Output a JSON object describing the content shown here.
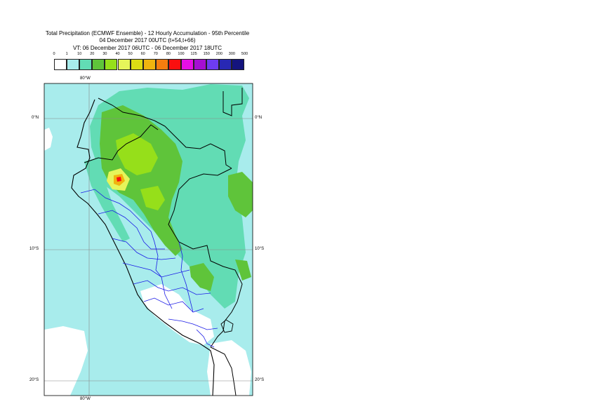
{
  "title": {
    "line1": "Total Precipitation (ECMWF Ensemble) - 12 Hourly Accumulation - 95th Percentile",
    "line2": "04 December 2017 00UTC (t+54,t+66)",
    "line3": "VT: 06 December 2017 06UTC - 06 December 2017 18UTC"
  },
  "legend": {
    "thresholds": [
      "0",
      "1",
      "10",
      "20",
      "30",
      "40",
      "50",
      "60",
      "70",
      "80",
      "100",
      "125",
      "150",
      "200",
      "300",
      "500"
    ],
    "colors": [
      "#ffffff",
      "#a8ecec",
      "#62dcb4",
      "#5fc43a",
      "#96df1a",
      "#e6f55a",
      "#dcdc14",
      "#f0b40f",
      "#f57d0f",
      "#fa0f0f",
      "#e60fe6",
      "#a50fd2",
      "#6e3cf0",
      "#2828b4",
      "#14147d"
    ]
  },
  "axes": {
    "lon_top": "80°W",
    "lon_bottom": "80°W",
    "lat_0_left": "0°N",
    "lat_0_right": "0°N",
    "lat_10_left": "10°S",
    "lat_10_right": "10°S",
    "lat_20_left": "20°S",
    "lat_20_right": "20°S"
  },
  "map": {
    "ocean_color": "#a8ecec",
    "colors": {
      "c1": "#a8ecec",
      "c10": "#62dcb4",
      "c20": "#5fc43a",
      "c30": "#96df1a",
      "c40": "#e6f55a",
      "c60": "#f0b40f",
      "c80": "#fa0f0f",
      "white": "#ffffff",
      "coast": "#000000",
      "border": "#1a1ae6"
    }
  }
}
